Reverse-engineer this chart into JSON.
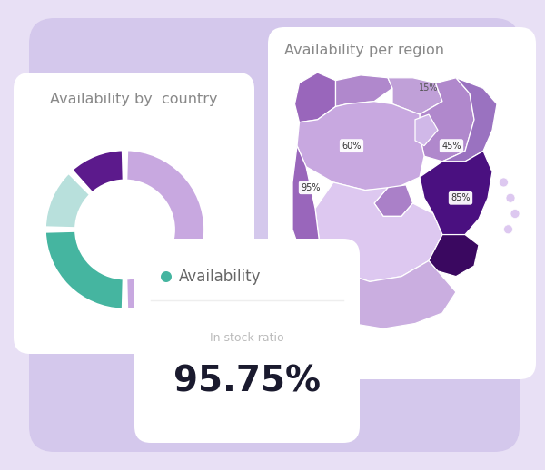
{
  "background_color": "#e8e0f5",
  "card_color": "#ffffff",
  "title_pie": "Availability by  country",
  "title_map": "Availability per region",
  "legend_label": "Availability",
  "metric_label": "In stock ratio",
  "metric_value": "95.75%",
  "donut_values": [
    50,
    25,
    13,
    12
  ],
  "donut_colors": [
    "#c8a8e0",
    "#45b5a0",
    "#b8e0dc",
    "#5c1a8c"
  ],
  "teal_color": "#45b5a0",
  "shadow_color": "#d4c8ec"
}
